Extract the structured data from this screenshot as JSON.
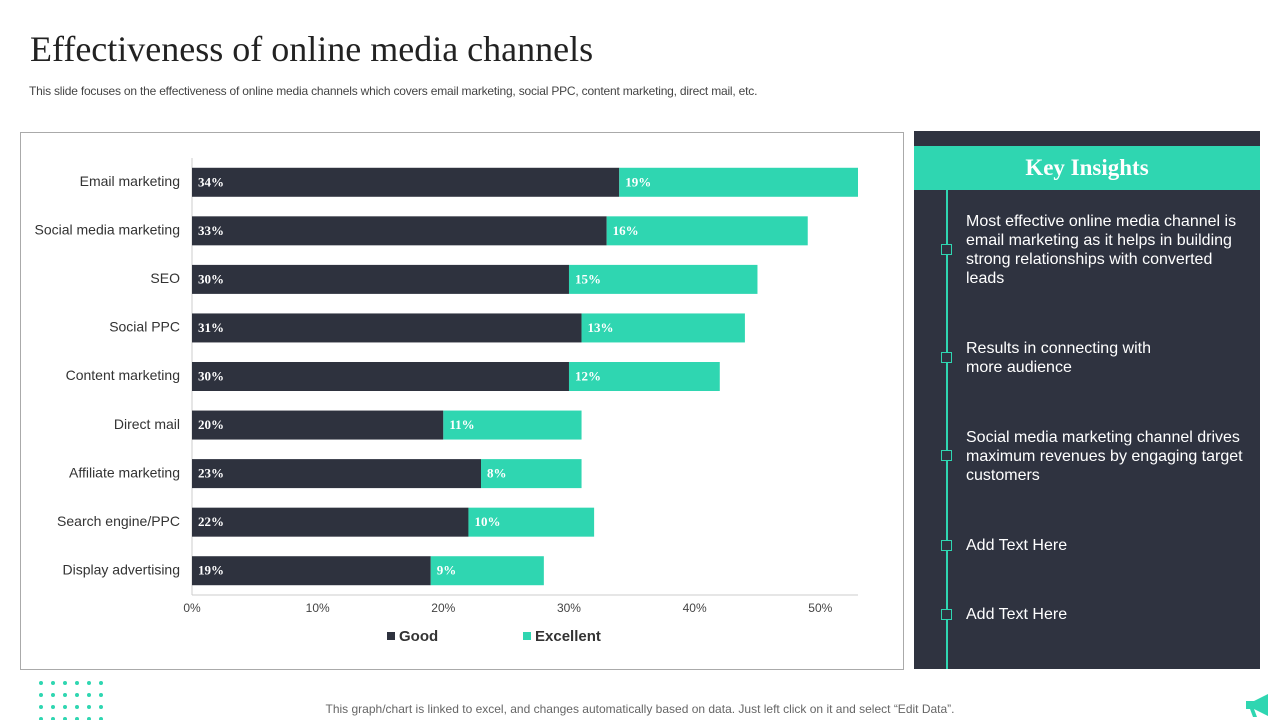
{
  "header": {
    "title": "Effectiveness of online media channels",
    "subtitle": "This slide focuses on the effectiveness of online media channels which covers email marketing, social PPC, content marketing, direct mail, etc."
  },
  "chart_data": {
    "type": "stacked-barh",
    "categories": [
      "Email marketing",
      "Social media marketing",
      "SEO",
      "Social PPC",
      "Content marketing",
      "Direct mail",
      "Affiliate marketing",
      "Search engine/PPC",
      "Display advertising"
    ],
    "series": [
      {
        "name": "Good",
        "color": "#2e323e",
        "values": [
          34,
          33,
          30,
          31,
          30,
          20,
          23,
          22,
          19
        ],
        "value_labels": [
          "34%",
          "33%",
          "30%",
          "31%",
          "30%",
          "20%",
          "23%",
          "22%",
          "19%"
        ]
      },
      {
        "name": "Excellent",
        "color": "#2fd6b1",
        "values": [
          19,
          16,
          15,
          13,
          12,
          11,
          8,
          10,
          9
        ],
        "value_labels": [
          "19%",
          "16%",
          "15%",
          "13%",
          "12%",
          "11%",
          "8%",
          "10%",
          "9%"
        ]
      }
    ],
    "xlim": [
      0,
      53
    ],
    "xticks": [
      {
        "value": 0,
        "label": "0%"
      },
      {
        "value": 10,
        "label": "10%"
      },
      {
        "value": 20,
        "label": "20%"
      },
      {
        "value": 30,
        "label": "30%"
      },
      {
        "value": 40,
        "label": "40%"
      },
      {
        "value": 50,
        "label": "50%"
      }
    ],
    "grid": false,
    "legend": "bottom"
  },
  "insights": {
    "title": "Key Insights",
    "items": [
      "Most effective online media channel is email marketing as it helps in building strong relationships with converted leads",
      "Results in connecting with more audience",
      "Social media marketing channel drives maximum revenues by engaging target customers",
      "Add Text Here",
      "Add Text Here"
    ]
  },
  "footer": "This graph/chart is linked to excel,  and changes automatically based on data. Just left click on it and select “Edit Data”."
}
